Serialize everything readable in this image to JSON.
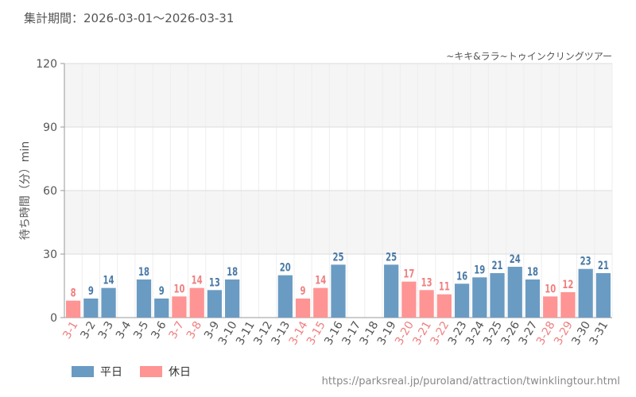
{
  "header": {
    "period_label": "集計期間：",
    "period_range": "2026-03-01～2026-03-31",
    "attraction": "~キキ&ララ~トゥインクリングツアー"
  },
  "legend": {
    "weekday": "平日",
    "holiday": "休日"
  },
  "source_url": "https://parksreal.jp/puroland/attraction/twinklingtour.html",
  "colors": {
    "weekday": "#6a9bc3",
    "holiday": "#ff9494",
    "weekday_label": "#4a7aa6",
    "holiday_label": "#f08080",
    "axis_text": "#555555",
    "band": "#f5f5f5",
    "grid": "#dddddd"
  },
  "chart_data": {
    "type": "bar",
    "ylabel": "待ち時間（分）min",
    "ylim": [
      0,
      120
    ],
    "yticks": [
      0,
      30,
      60,
      90,
      120
    ],
    "categories": [
      "3-1",
      "3-2",
      "3-3",
      "3-4",
      "3-5",
      "3-6",
      "3-7",
      "3-8",
      "3-9",
      "3-10",
      "3-11",
      "3-12",
      "3-13",
      "3-14",
      "3-15",
      "3-16",
      "3-17",
      "3-18",
      "3-19",
      "3-20",
      "3-21",
      "3-22",
      "3-23",
      "3-24",
      "3-25",
      "3-26",
      "3-27",
      "3-28",
      "3-29",
      "3-30",
      "3-31"
    ],
    "values": [
      8,
      9,
      14,
      null,
      18,
      9,
      10,
      14,
      13,
      18,
      null,
      null,
      20,
      9,
      14,
      25,
      null,
      null,
      25,
      17,
      13,
      11,
      16,
      19,
      21,
      24,
      18,
      10,
      12,
      23,
      21
    ],
    "day_type": [
      "holiday",
      "weekday",
      "weekday",
      "weekday",
      "weekday",
      "weekday",
      "holiday",
      "holiday",
      "weekday",
      "weekday",
      "weekday",
      "weekday",
      "weekday",
      "holiday",
      "holiday",
      "weekday",
      "weekday",
      "weekday",
      "weekday",
      "holiday",
      "holiday",
      "holiday",
      "weekday",
      "weekday",
      "weekday",
      "weekday",
      "weekday",
      "holiday",
      "holiday",
      "weekday",
      "weekday"
    ],
    "series": [
      {
        "name": "平日",
        "key": "weekday"
      },
      {
        "name": "休日",
        "key": "holiday"
      }
    ]
  }
}
